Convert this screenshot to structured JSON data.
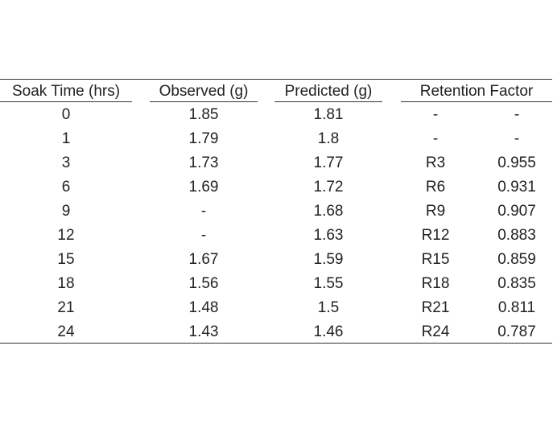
{
  "table": {
    "headers": {
      "soak_time": "Soak Time (hrs)",
      "observed": "Observed (g)",
      "predicted": "Predicted (g)",
      "retention_factor": "Retention Factor"
    },
    "rows": [
      {
        "time": "0",
        "observed": "1.85",
        "predicted": "1.81",
        "rid": "-",
        "rval": "-"
      },
      {
        "time": "1",
        "observed": "1.79",
        "predicted": "1.8",
        "rid": "-",
        "rval": "-"
      },
      {
        "time": "3",
        "observed": "1.73",
        "predicted": "1.77",
        "rid": "R3",
        "rval": "0.955"
      },
      {
        "time": "6",
        "observed": "1.69",
        "predicted": "1.72",
        "rid": "R6",
        "rval": "0.931"
      },
      {
        "time": "9",
        "observed": "-",
        "predicted": "1.68",
        "rid": "R9",
        "rval": "0.907"
      },
      {
        "time": "12",
        "observed": "-",
        "predicted": "1.63",
        "rid": "R12",
        "rval": "0.883"
      },
      {
        "time": "15",
        "observed": "1.67",
        "predicted": "1.59",
        "rid": "R15",
        "rval": "0.859"
      },
      {
        "time": "18",
        "observed": "1.56",
        "predicted": "1.55",
        "rid": "R18",
        "rval": "0.835"
      },
      {
        "time": "21",
        "observed": "1.48",
        "predicted": "1.5",
        "rid": "R21",
        "rval": "0.811"
      },
      {
        "time": "24",
        "observed": "1.43",
        "predicted": "1.46",
        "rid": "R24",
        "rval": "0.787"
      }
    ]
  }
}
